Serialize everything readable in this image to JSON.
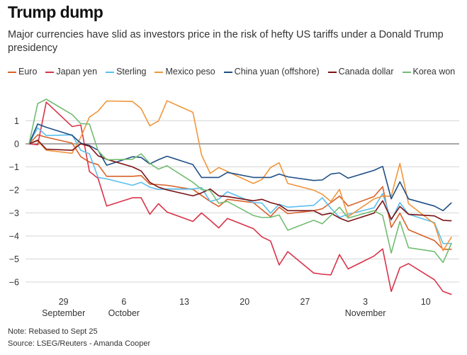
{
  "title": "Trump dump",
  "subtitle": "Major currencies have slid as investors price in the risk of hefty US tariffs under a Donald Trump presidency",
  "note": "Note: Rebased to Sept 25",
  "source": "Source: LSEG/Reuters - Amanda Cooper",
  "chart_data": {
    "type": "line",
    "title": "Trump dump",
    "xlabel": "",
    "ylabel": "",
    "ylim": [
      -6.6,
      2.0
    ],
    "yticks": [
      1,
      0,
      -1,
      -2,
      -3,
      -4,
      -5,
      -6
    ],
    "ytick_labels": [
      "1",
      "0",
      "−1",
      "−2",
      "−3",
      "−4",
      "−5",
      "−6"
    ],
    "xticks": [
      {
        "date": "09-29",
        "day": "29",
        "month": "September"
      },
      {
        "date": "10-06",
        "day": "6",
        "month": "October"
      },
      {
        "date": "10-13",
        "day": "13",
        "month": ""
      },
      {
        "date": "10-20",
        "day": "20",
        "month": ""
      },
      {
        "date": "10-27",
        "day": "27",
        "month": ""
      },
      {
        "date": "11-03",
        "day": "3",
        "month": "November"
      },
      {
        "date": "11-10",
        "day": "10",
        "month": ""
      }
    ],
    "grid": true,
    "legend_placement": "top",
    "x": [
      "09-25",
      "09-26",
      "09-27",
      "09-30",
      "10-01",
      "10-02",
      "10-03",
      "10-04",
      "10-07",
      "10-08",
      "10-09",
      "10-10",
      "10-11",
      "10-14",
      "10-15",
      "10-16",
      "10-17",
      "10-18",
      "10-21",
      "10-22",
      "10-23",
      "10-24",
      "10-25",
      "10-28",
      "10-29",
      "10-30",
      "10-31",
      "11-01",
      "11-04",
      "11-05",
      "11-06",
      "11-07",
      "11-08",
      "11-11",
      "11-12",
      "11-13"
    ],
    "series": [
      {
        "name": "Euro",
        "color": "#d8622a",
        "values": [
          0,
          0.39,
          0.29,
          0.03,
          -0.56,
          -0.79,
          -0.9,
          -1.41,
          -1.41,
          -1.38,
          -1.75,
          -1.77,
          -1.8,
          -1.98,
          -2.24,
          -2.5,
          -2.72,
          -2.41,
          -2.55,
          -2.86,
          -3.16,
          -2.75,
          -3.03,
          -2.9,
          -2.82,
          -2.55,
          -2.27,
          -2.7,
          -2.29,
          -1.86,
          -3.63,
          -3.01,
          -3.73,
          -4.2,
          -4.58,
          -4.58
        ]
      },
      {
        "name": "Japan yen",
        "color": "#d9334a",
        "values": [
          0,
          -0.04,
          1.81,
          0.75,
          0.82,
          -1.2,
          -1.5,
          -2.7,
          -2.34,
          -2.34,
          -3.06,
          -2.6,
          -2.96,
          -3.37,
          -3.0,
          -3.32,
          -3.65,
          -3.24,
          -3.68,
          -4.04,
          -4.22,
          -5.26,
          -4.68,
          -5.61,
          -5.66,
          -5.69,
          -4.81,
          -5.43,
          -4.87,
          -4.56,
          -6.41,
          -5.38,
          -5.2,
          -5.9,
          -6.41,
          -6.54
        ]
      },
      {
        "name": "Sterling",
        "color": "#5bbfee",
        "values": [
          0,
          0.7,
          0.36,
          0.39,
          -0.28,
          -0.43,
          -1.46,
          -1.52,
          -1.8,
          -1.67,
          -1.88,
          -1.98,
          -1.96,
          -1.96,
          -1.9,
          -2.5,
          -2.4,
          -2.08,
          -2.55,
          -2.57,
          -3.01,
          -2.62,
          -2.75,
          -2.67,
          -2.34,
          -2.8,
          -3.19,
          -3.06,
          -2.78,
          -2.16,
          -3.32,
          -2.55,
          -3.06,
          -3.42,
          -4.33,
          -4.33
        ]
      },
      {
        "name": "Mexico peso",
        "color": "#f0963b",
        "values": [
          0,
          0.13,
          -0.28,
          -0.41,
          0.29,
          1.16,
          1.42,
          1.86,
          1.84,
          1.53,
          0.78,
          0.99,
          1.87,
          1.37,
          -0.48,
          -1.28,
          -1.03,
          -1.2,
          -1.72,
          -1.55,
          -1.03,
          -0.82,
          -1.72,
          -2.01,
          -2.19,
          -2.5,
          -1.98,
          -3.16,
          -2.39,
          -2.27,
          -2.27,
          -0.85,
          -2.6,
          -3.47,
          -4.64,
          -4.04
        ]
      },
      {
        "name": "China yuan (offshore)",
        "color": "#1f4e85",
        "values": [
          0,
          0.86,
          0.72,
          0.37,
          0.03,
          -0.07,
          -0.28,
          -0.93,
          -0.56,
          -0.59,
          -0.87,
          -0.69,
          -0.54,
          -0.9,
          -1.46,
          -1.46,
          -1.46,
          -1.24,
          -1.46,
          -1.46,
          -1.46,
          -1.31,
          -1.43,
          -1.59,
          -1.57,
          -1.31,
          -1.26,
          -1.49,
          -1.15,
          -0.98,
          -2.39,
          -1.65,
          -2.39,
          -2.7,
          -2.9,
          -2.55
        ]
      },
      {
        "name": "Canada dollar",
        "color": "#7a1216",
        "values": [
          0,
          0.16,
          -0.23,
          -0.28,
          0,
          -0.1,
          -0.52,
          -0.67,
          -1.0,
          -1.18,
          -1.67,
          -1.88,
          -2.0,
          -2.26,
          -2.13,
          -1.96,
          -2.26,
          -2.29,
          -2.47,
          -2.41,
          -2.55,
          -2.65,
          -2.9,
          -2.9,
          -3.09,
          -3.01,
          -3.22,
          -3.37,
          -3.01,
          -2.47,
          -3.27,
          -2.72,
          -3.06,
          -3.13,
          -3.32,
          -3.34
        ]
      },
      {
        "name": "Korea won",
        "color": "#72bd72",
        "values": [
          0,
          1.75,
          1.94,
          1.27,
          0.88,
          0.86,
          -0.3,
          -0.69,
          -0.67,
          -0.43,
          -0.85,
          -1.1,
          -0.95,
          -1.67,
          -1.98,
          -2.03,
          -2.58,
          -2.5,
          -3.11,
          -3.2,
          -3.19,
          -3.09,
          -3.75,
          -3.32,
          -3.47,
          -3.11,
          -2.75,
          -3.22,
          -2.9,
          -3.11,
          -4.74,
          -3.37,
          -4.51,
          -4.68,
          -5.15,
          -4.3
        ]
      }
    ]
  }
}
